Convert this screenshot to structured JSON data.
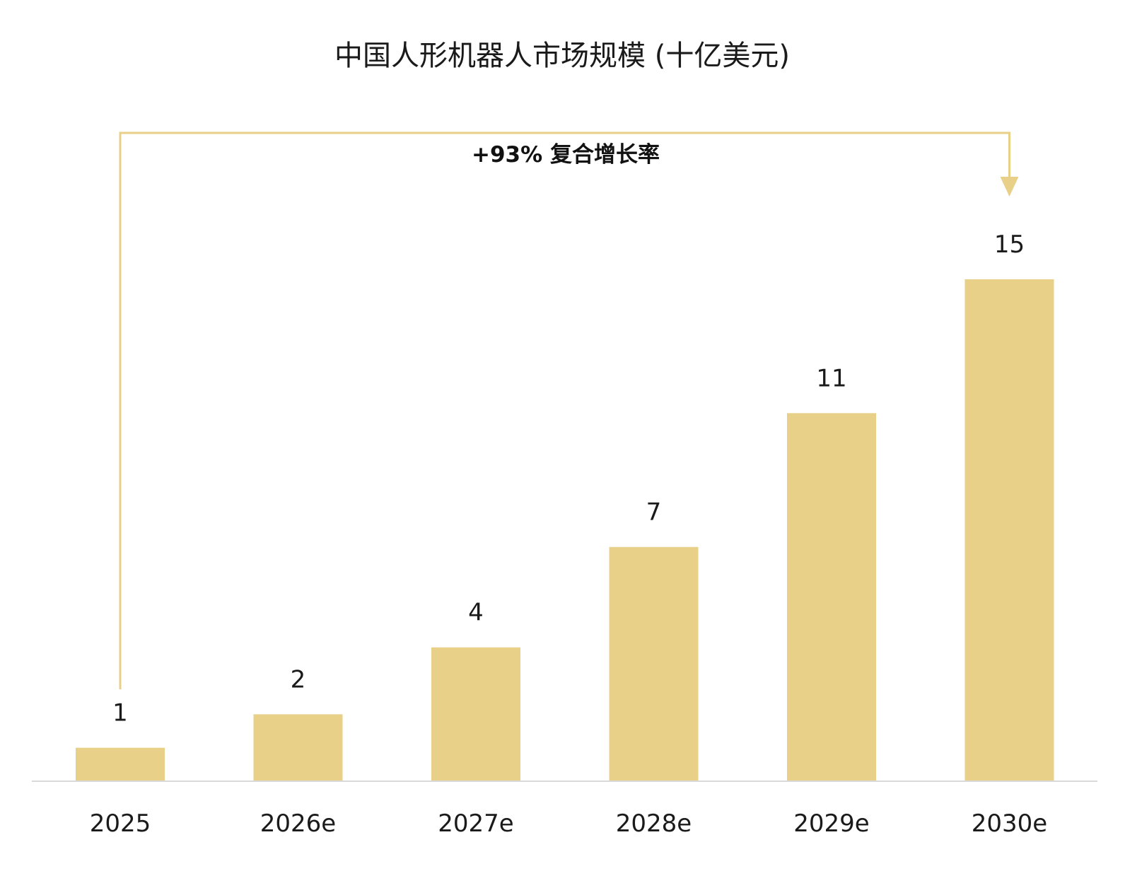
{
  "chart_data": {
    "type": "bar",
    "title": "中国人形机器人市场规模 (十亿美元)",
    "categories": [
      "2025",
      "2026e",
      "2027e",
      "2028e",
      "2029e",
      "2030e"
    ],
    "values": [
      1,
      2,
      4,
      7,
      11,
      15
    ],
    "value_labels": [
      "1",
      "2",
      "4",
      "7",
      "11",
      "15"
    ],
    "xlabel": "",
    "ylabel": "",
    "ylim": [
      0,
      15
    ],
    "grid": false,
    "legend": "none",
    "annotation": {
      "text": "+93% 复合增长率",
      "from_category": "2025",
      "to_category": "2030e"
    },
    "colors": {
      "bar": "#E9D089",
      "bracket": "#E9D089",
      "axis": "#D9D9D9"
    }
  }
}
